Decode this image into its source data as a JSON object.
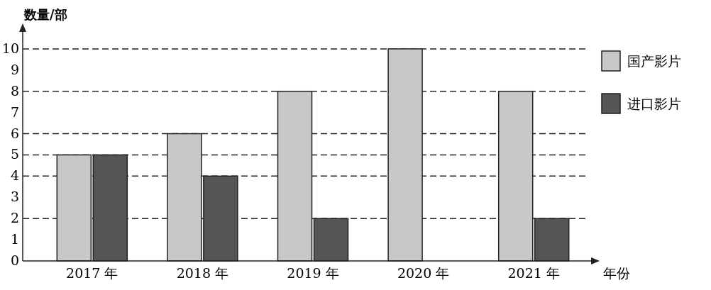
{
  "chart_data": {
    "type": "bar",
    "ylabel": "数量/部",
    "xlabel": "年份",
    "categories": [
      "2017 年",
      "2018 年",
      "2019 年",
      "2020 年",
      "2021 年"
    ],
    "series": [
      {
        "name": "国产影片",
        "color": "#c8c8c8",
        "values": [
          5,
          6,
          8,
          10,
          8
        ]
      },
      {
        "name": "进口影片",
        "color": "#555555",
        "values": [
          5,
          4,
          2,
          0,
          2
        ]
      }
    ],
    "ylim": [
      0,
      10.8
    ],
    "yticks": [
      0,
      1,
      2,
      3,
      4,
      5,
      6,
      7,
      8,
      9,
      10
    ],
    "ref_lines": [
      {
        "axis": "y",
        "value": 10,
        "line_style": "dashed"
      },
      {
        "axis": "y",
        "value": 8,
        "line_style": "dashed"
      },
      {
        "axis": "y",
        "value": 6,
        "line_style": "dashed"
      },
      {
        "axis": "y",
        "value": 5,
        "line_style": "dashed"
      },
      {
        "axis": "y",
        "value": 4,
        "line_style": "dashed"
      },
      {
        "axis": "y",
        "value": 2,
        "line_style": "dashed"
      }
    ],
    "legend": "top right",
    "grid": false
  }
}
